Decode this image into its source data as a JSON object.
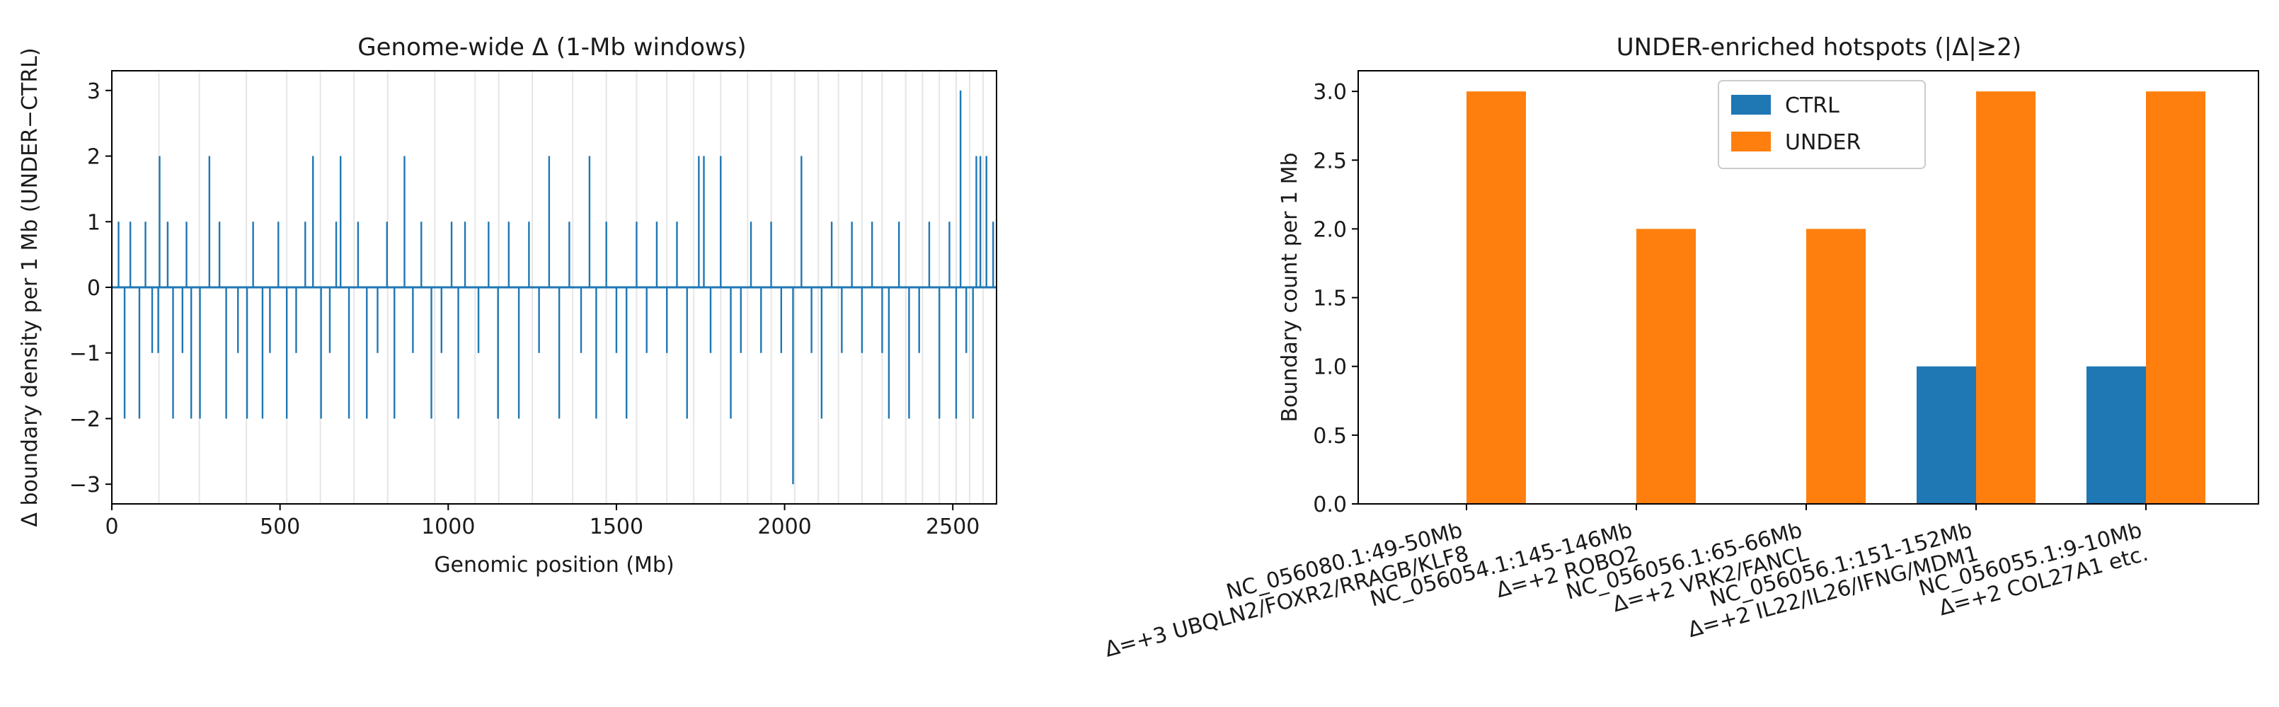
{
  "chart_data": [
    {
      "type": "line",
      "title": "Genome-wide Δ (1-Mb windows)",
      "xlabel": "Genomic position (Mb)",
      "ylabel": "Δ boundary density per 1 Mb (UNDER−CTRL)",
      "xlim": [
        0,
        2630
      ],
      "ylim": [
        -3.3,
        3.3
      ],
      "xticks": [
        0,
        500,
        1000,
        1500,
        2000,
        2500
      ],
      "yticks": [
        -3,
        -2,
        -1,
        0,
        1,
        2,
        3
      ],
      "color": "#1f77b4",
      "chromosome_boundaries_mb": [
        140,
        260,
        400,
        520,
        620,
        720,
        820,
        960,
        1080,
        1150,
        1250,
        1370,
        1470,
        1560,
        1650,
        1730,
        1810,
        1890,
        1960,
        2030,
        2100,
        2160,
        2230,
        2290,
        2360,
        2410,
        2460,
        2510,
        2550,
        2590
      ],
      "spikes": {
        "x": [
          20,
          38,
          55,
          82,
          100,
          120,
          138,
          142,
          166,
          182,
          210,
          222,
          236,
          262,
          290,
          320,
          340,
          375,
          402,
          420,
          448,
          470,
          495,
          520,
          548,
          575,
          598,
          622,
          648,
          667,
          680,
          705,
          732,
          758,
          790,
          818,
          840,
          870,
          895,
          920,
          950,
          980,
          1010,
          1030,
          1050,
          1090,
          1120,
          1148,
          1180,
          1210,
          1240,
          1270,
          1300,
          1330,
          1360,
          1395,
          1420,
          1440,
          1470,
          1500,
          1530,
          1560,
          1590,
          1620,
          1650,
          1680,
          1710,
          1745,
          1760,
          1780,
          1810,
          1840,
          1870,
          1900,
          1930,
          1960,
          1990,
          2025,
          2050,
          2080,
          2110,
          2140,
          2170,
          2200,
          2230,
          2260,
          2290,
          2310,
          2340,
          2370,
          2400,
          2430,
          2460,
          2490,
          2510,
          2523,
          2540,
          2560,
          2570,
          2582,
          2600,
          2620
        ],
        "y": [
          1,
          -2,
          1,
          -2,
          1,
          -1,
          -1,
          2,
          1,
          -2,
          -1,
          1,
          -2,
          -2,
          2,
          1,
          -2,
          -1,
          -2,
          1,
          -2,
          -1,
          1,
          -2,
          -1,
          1,
          2,
          -2,
          -1,
          1,
          2,
          -2,
          1,
          -2,
          -1,
          1,
          -2,
          2,
          -1,
          1,
          -2,
          -1,
          1,
          -2,
          1,
          -1,
          1,
          -2,
          1,
          -2,
          1,
          -1,
          2,
          -2,
          1,
          -1,
          2,
          -2,
          1,
          -1,
          -2,
          1,
          -1,
          1,
          -1,
          1,
          -2,
          2,
          2,
          -1,
          2,
          -2,
          -1,
          1,
          -1,
          1,
          -1,
          -3,
          2,
          -1,
          -2,
          1,
          -1,
          1,
          -1,
          1,
          -1,
          -2,
          1,
          -2,
          -1,
          1,
          -2,
          1,
          -2,
          3,
          -1,
          -2,
          2,
          2,
          2,
          1
        ]
      }
    },
    {
      "type": "bar",
      "title": "UNDER-enriched hotspots (|Δ|≥2)",
      "xlabel": "",
      "ylabel": "Boundary count per 1 Mb",
      "ylim": [
        0,
        3.15
      ],
      "yticks": [
        "0.0",
        "0.5",
        "1.0",
        "1.5",
        "2.0",
        "2.5",
        "3.0"
      ],
      "categories": [
        {
          "line1": "NC_056080.1:49-50Mb",
          "line2": "Δ=+3 UBQLN2/FOXR2/RRAGB/KLF8"
        },
        {
          "line1": "NC_056054.1:145-146Mb",
          "line2": "Δ=+2 ROBO2"
        },
        {
          "line1": "NC_056056.1:65-66Mb",
          "line2": "Δ=+2 VRK2/FANCL"
        },
        {
          "line1": "NC_056056.1:151-152Mb",
          "line2": "Δ=+2 IL22/IL26/IFNG/MDM1"
        },
        {
          "line1": "NC_056055.1:9-10Mb",
          "line2": "Δ=+2 COL27A1 etc."
        }
      ],
      "series": [
        {
          "name": "CTRL",
          "color": "#1f77b4",
          "values": [
            0,
            0,
            0,
            1,
            1
          ]
        },
        {
          "name": "UNDER",
          "color": "#ff7f0e",
          "values": [
            3,
            2,
            2,
            3,
            3
          ]
        }
      ],
      "legend": "top-center"
    }
  ]
}
